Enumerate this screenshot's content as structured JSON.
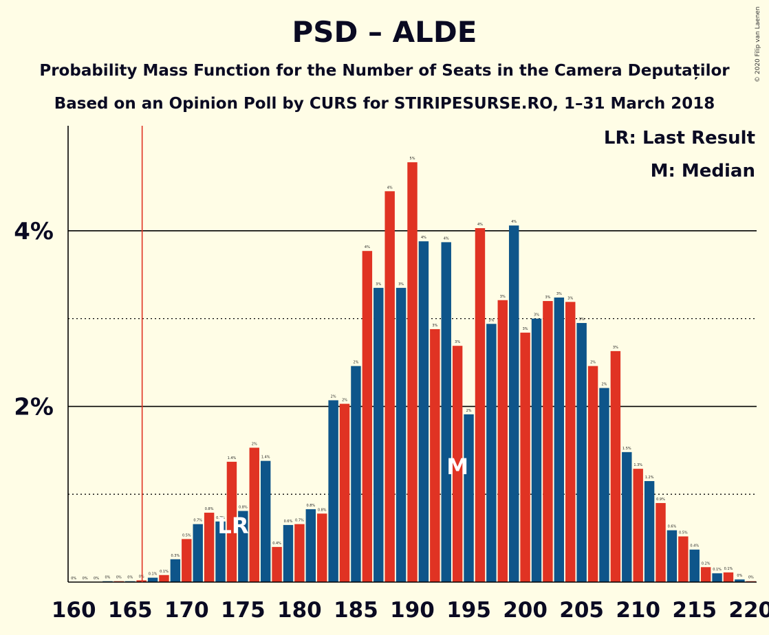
{
  "header": {
    "title": "PSD – ALDE",
    "subtitle": "Probability Mass Function for the Number of Seats in the Camera Deputaților",
    "subtitle2": "Based on an Opinion Poll by CURS for STIRIPESURSE.RO, 1–31 March 2018",
    "copyright": "© 2020 Filip van Laenen"
  },
  "legend": {
    "last_result": "LR: Last Result",
    "median": "M: Median"
  },
  "markers": {
    "last_result_label": "LR",
    "median_label": "M",
    "last_result_seat": 166,
    "last_result_marker_seat": 174,
    "median_seat": 194
  },
  "colors": {
    "red": "#E03323",
    "blue": "#0E558A",
    "background": "#FFFDE6",
    "last_result_line": "#E03323"
  },
  "chart_data": {
    "type": "bar",
    "title": "PSD – ALDE",
    "xlabel": "",
    "ylabel": "",
    "x": [
      160,
      161,
      162,
      163,
      164,
      165,
      166,
      167,
      168,
      169,
      170,
      171,
      172,
      173,
      174,
      175,
      176,
      177,
      178,
      179,
      180,
      181,
      182,
      183,
      184,
      185,
      186,
      187,
      188,
      189,
      190,
      191,
      192,
      193,
      194,
      195,
      196,
      197,
      198,
      199,
      200,
      201,
      202,
      203,
      204,
      205,
      206,
      207,
      208,
      209,
      210,
      211,
      212,
      213,
      214,
      215,
      216,
      217,
      218,
      219,
      220
    ],
    "values": [
      0,
      0,
      0,
      0.01,
      0.01,
      0.01,
      0.02,
      0.05,
      0.08,
      0.26,
      0.49,
      0.66,
      0.79,
      0.69,
      1.37,
      0.81,
      1.53,
      1.38,
      0.4,
      0.65,
      0.66,
      0.83,
      0.78,
      2.07,
      2.03,
      2.46,
      3.77,
      3.35,
      4.45,
      3.35,
      4.78,
      3.88,
      2.88,
      3.87,
      2.69,
      1.91,
      4.03,
      2.94,
      3.21,
      4.06,
      2.84,
      3,
      3.2,
      3.24,
      3.19,
      2.95,
      2.46,
      2.21,
      2.63,
      1.48,
      1.29,
      1.15,
      0.9,
      0.59,
      0.52,
      0.37,
      0.17,
      0.1,
      0.11,
      0.03,
      0.01
    ],
    "value_labels": [
      "0%",
      "0%",
      "0%",
      "0%",
      "0%",
      "0%",
      "0%",
      "0.1%",
      "0.1%",
      "0.3%",
      "0.5%",
      "0.7%",
      "0.8%",
      "0.7%",
      "1.4%",
      "0.8%",
      "2%",
      "1.4%",
      "0.4%",
      "0.6%",
      "0.7%",
      "0.8%",
      "0.8%",
      "2%",
      "2%",
      "2%",
      "4%",
      "3%",
      "4%",
      "3%",
      "5%",
      "4%",
      "3%",
      "4%",
      "3%",
      "2%",
      "4%",
      "3%",
      "3%",
      "4%",
      "3%",
      "3%",
      "3%",
      "3%",
      "3%",
      "3%",
      "2%",
      "2%",
      "3%",
      "1.5%",
      "1.3%",
      "1.2%",
      "0.9%",
      "0.6%",
      "0.5%",
      "0.4%",
      "0.2%",
      "0.1%",
      "0.1%",
      "0%",
      "0%"
    ],
    "x_ticks": [
      160,
      165,
      170,
      175,
      180,
      185,
      190,
      195,
      200,
      205,
      210,
      215,
      220
    ],
    "x_tick_labels": [
      "160",
      "165",
      "170",
      "175",
      "180",
      "185",
      "190",
      "195",
      "200",
      "205",
      "210",
      "215",
      "220"
    ],
    "y_ticks": [
      2,
      4
    ],
    "y_tick_labels": [
      "2%",
      "4%"
    ],
    "y_dotted_gridlines": [
      1,
      3
    ],
    "ylim": [
      0,
      5.2
    ],
    "xlim": [
      159.5,
      220.5
    ],
    "legend_position": "top-right"
  }
}
